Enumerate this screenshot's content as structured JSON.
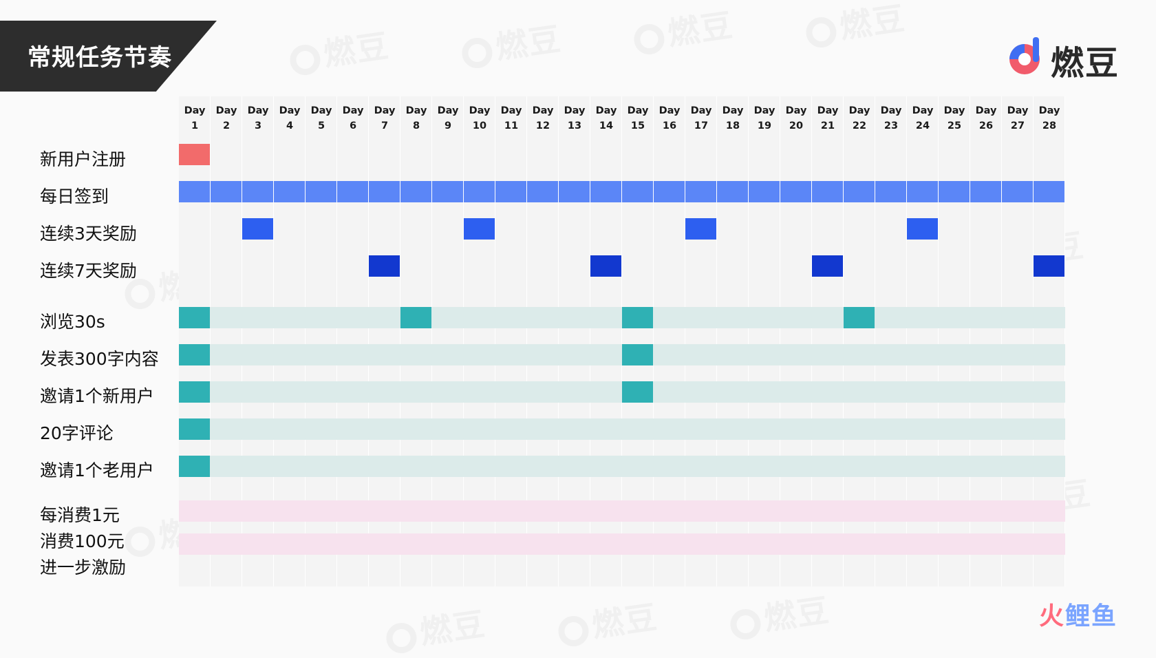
{
  "header": {
    "title": "常规任务节奏"
  },
  "brand": {
    "logo_text": "燃豆",
    "watermark_text": "燃豆",
    "source_text_a": "火",
    "source_text_b": "鲤鱼"
  },
  "days": [
    {
      "l1": "Day",
      "l2": "1"
    },
    {
      "l1": "Day",
      "l2": "2"
    },
    {
      "l1": "Day",
      "l2": "3"
    },
    {
      "l1": "Day",
      "l2": "4"
    },
    {
      "l1": "Day",
      "l2": "5"
    },
    {
      "l1": "Day",
      "l2": "6"
    },
    {
      "l1": "Day",
      "l2": "7"
    },
    {
      "l1": "Day",
      "l2": "8"
    },
    {
      "l1": "Day",
      "l2": "9"
    },
    {
      "l1": "Day",
      "l2": "10"
    },
    {
      "l1": "Day",
      "l2": "11"
    },
    {
      "l1": "Day",
      "l2": "12"
    },
    {
      "l1": "Day",
      "l2": "13"
    },
    {
      "l1": "Day",
      "l2": "14"
    },
    {
      "l1": "Day",
      "l2": "15"
    },
    {
      "l1": "Day",
      "l2": "16"
    },
    {
      "l1": "Day",
      "l2": "17"
    },
    {
      "l1": "Day",
      "l2": "18"
    },
    {
      "l1": "Day",
      "l2": "19"
    },
    {
      "l1": "Day",
      "l2": "20"
    },
    {
      "l1": "Day",
      "l2": "21"
    },
    {
      "l1": "Day",
      "l2": "22"
    },
    {
      "l1": "Day",
      "l2": "23"
    },
    {
      "l1": "Day",
      "l2": "24"
    },
    {
      "l1": "Day",
      "l2": "25"
    },
    {
      "l1": "Day",
      "l2": "26"
    },
    {
      "l1": "Day",
      "l2": "27"
    },
    {
      "l1": "Day",
      "l2": "28"
    }
  ],
  "rows": [
    {
      "label": "新用户注册",
      "track_color": null,
      "cell_color": "#f26b6b",
      "active_days": [
        1
      ]
    },
    {
      "label": "每日签到",
      "track_color": null,
      "cell_color": "#5b86f7",
      "active_days": [
        1,
        2,
        3,
        4,
        5,
        6,
        7,
        8,
        9,
        10,
        11,
        12,
        13,
        14,
        15,
        16,
        17,
        18,
        19,
        20,
        21,
        22,
        23,
        24,
        25,
        26,
        27,
        28
      ]
    },
    {
      "label": "连续3天奖励",
      "track_color": null,
      "cell_color": "#2d5ff0",
      "active_days": [
        3,
        10,
        17,
        24
      ]
    },
    {
      "label": "连续7天奖励",
      "track_color": null,
      "cell_color": "#1238cf",
      "active_days": [
        7,
        14,
        21,
        28
      ]
    },
    {
      "label": "浏览30s",
      "track_color": "#dcebea",
      "cell_color": "#2fb1b4",
      "active_days": [
        1,
        8,
        15,
        22
      ]
    },
    {
      "label": "发表300字内容",
      "track_color": "#dcebea",
      "cell_color": "#2fb1b4",
      "active_days": [
        1,
        15
      ]
    },
    {
      "label": "邀请1个新用户",
      "track_color": "#dcebea",
      "cell_color": "#2fb1b4",
      "active_days": [
        1,
        15
      ]
    },
    {
      "label": "20字评论",
      "track_color": "#dcebea",
      "cell_color": "#2fb1b4",
      "active_days": [
        1
      ]
    },
    {
      "label": "邀请1个老用户",
      "track_color": "#dcebea",
      "cell_color": "#2fb1b4",
      "active_days": [
        1
      ]
    },
    {
      "label": "每消费1元",
      "track_color": "#f7e2ee",
      "cell_color": null,
      "active_days": []
    },
    {
      "label": "消费100元",
      "track_color": "#f7e2ee",
      "cell_color": null,
      "active_days": []
    },
    {
      "label": "进一步激励",
      "track_color": null,
      "cell_color": null,
      "active_days": []
    }
  ]
}
